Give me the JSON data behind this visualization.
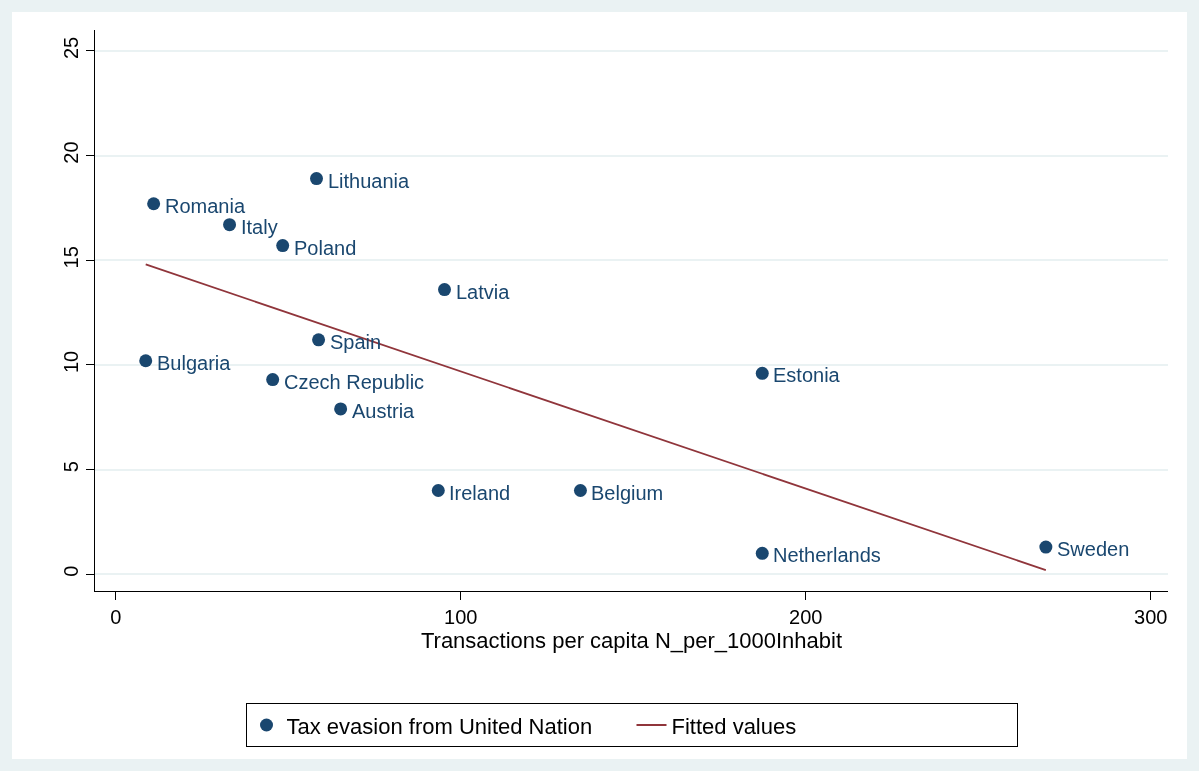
{
  "chart_data": {
    "type": "scatter",
    "xlabel": "Transactions per capita N_per_1000Inhabit",
    "xlim": [
      -6,
      305
    ],
    "xticks": [
      0,
      100,
      200,
      300
    ],
    "ylim": [
      -0.8,
      26
    ],
    "yticks": [
      0,
      5,
      10,
      15,
      20,
      25
    ],
    "grid": "y",
    "legend": "bottom",
    "series": [
      {
        "name": "Tax evasion from United Nation",
        "marker": "circle",
        "color": "#1a476f",
        "x": [
          11.0,
          58.2,
          33.0,
          48.4,
          95.3,
          58.8,
          8.7,
          45.5,
          65.2,
          187.4,
          93.5,
          134.7,
          187.4,
          269.6
        ],
        "values": [
          17.7,
          18.9,
          16.7,
          15.7,
          13.6,
          11.2,
          10.2,
          9.3,
          7.9,
          9.6,
          4.0,
          4.0,
          1.0,
          1.3
        ]
      },
      {
        "name": "Fitted values",
        "type": "line",
        "marker": "none",
        "color": "#90353b",
        "line_style": "solid",
        "x": [
          8.7,
          269.6
        ],
        "values": [
          14.8,
          0.2
        ]
      }
    ],
    "annotations": [
      {
        "text": "Romania",
        "x": 11.0,
        "y": 17.7
      },
      {
        "text": "Lithuania",
        "x": 58.2,
        "y": 18.9
      },
      {
        "text": "Italy",
        "x": 33.0,
        "y": 16.7
      },
      {
        "text": "Poland",
        "x": 48.4,
        "y": 15.7
      },
      {
        "text": "Latvia",
        "x": 95.3,
        "y": 13.6
      },
      {
        "text": "Spain",
        "x": 58.8,
        "y": 11.2
      },
      {
        "text": "Bulgaria",
        "x": 8.7,
        "y": 10.2
      },
      {
        "text": "Czech Republic",
        "x": 45.5,
        "y": 9.3
      },
      {
        "text": "Austria",
        "x": 65.2,
        "y": 7.9
      },
      {
        "text": "Estonia",
        "x": 187.4,
        "y": 9.6
      },
      {
        "text": "Ireland",
        "x": 93.5,
        "y": 4.0
      },
      {
        "text": "Belgium",
        "x": 134.7,
        "y": 4.0
      },
      {
        "text": "Netherlands",
        "x": 187.4,
        "y": 1.0
      },
      {
        "text": "Sweden",
        "x": 269.6,
        "y": 1.3
      }
    ]
  }
}
